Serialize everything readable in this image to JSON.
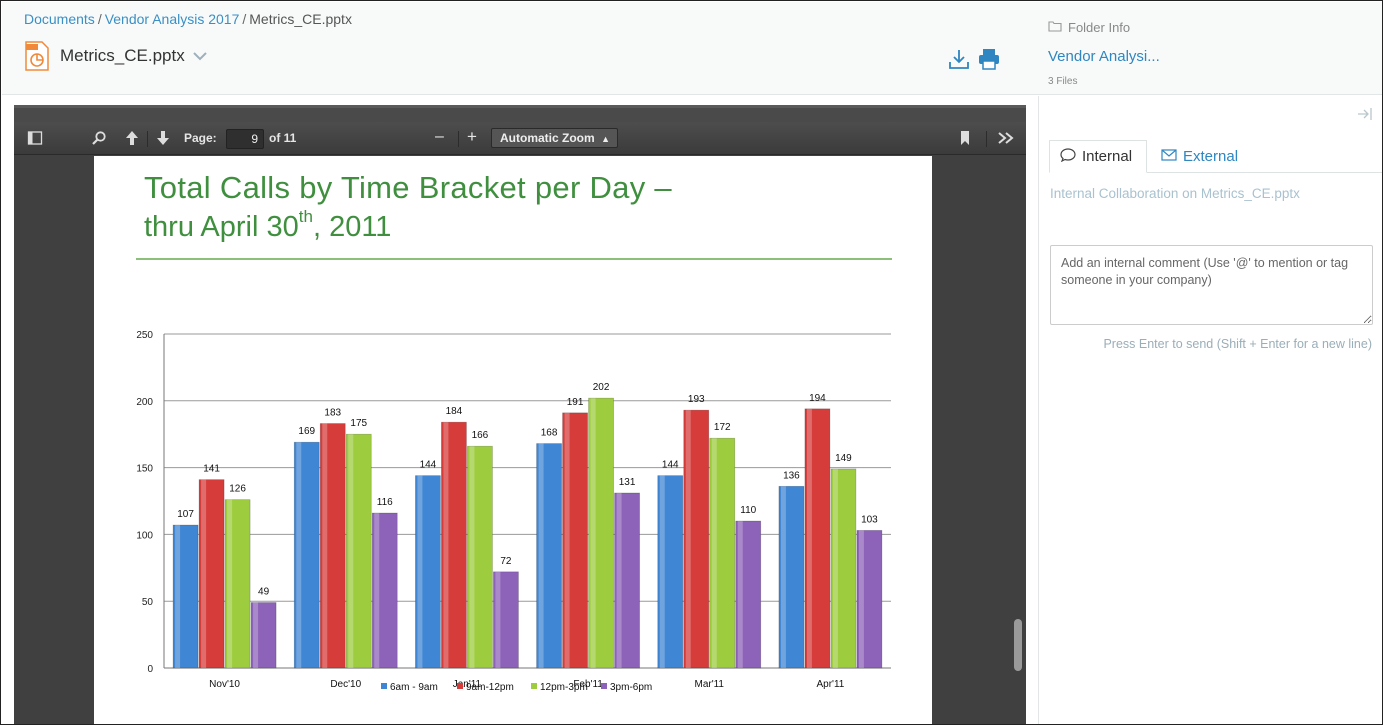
{
  "breadcrumb": {
    "items": [
      "Documents",
      "Vendor Analysis 2017"
    ],
    "current": "Metrics_CE.pptx",
    "sep": "/"
  },
  "file": {
    "name": "Metrics_CE.pptx",
    "icon": "pptx-file-icon"
  },
  "toolbar": {
    "download_icon": "download-icon",
    "print_icon": "print-icon"
  },
  "folder": {
    "label": "Folder Info",
    "name": "Vendor Analysi...",
    "count": "3 Files"
  },
  "collab": {
    "tabs": {
      "internal": "Internal",
      "external": "External"
    },
    "title": "Internal Collaboration on Metrics_CE.pptx",
    "placeholder": "Add an internal comment (Use '@' to mention or tag someone in your company)",
    "hint": "Press Enter to send (Shift + Enter for a new line)"
  },
  "pdf": {
    "page_label": "Page:",
    "page_value": "9",
    "page_total": "of 11",
    "zoom": "Automatic Zoom",
    "zoom_minus": "–",
    "zoom_plus": "+"
  },
  "slide": {
    "title_line1": "Total Calls by Time Bracket per Day –",
    "title_line2_pre": "thru April 30",
    "title_sup": "th",
    "title_line2_post": ", 2011"
  },
  "chart_data": {
    "type": "bar",
    "categories": [
      "Nov'10",
      "Dec'10",
      "Jan'11",
      "Feb'11",
      "Mar'11",
      "Apr'11"
    ],
    "series": [
      {
        "name": "6am - 9am",
        "color": "#3f86d4",
        "values": [
          107,
          169,
          144,
          168,
          144,
          136
        ]
      },
      {
        "name": "9am-12pm",
        "color": "#d63c3a",
        "values": [
          141,
          183,
          184,
          191,
          193,
          194
        ]
      },
      {
        "name": "12pm-3pm",
        "color": "#9dcd3e",
        "values": [
          126,
          175,
          166,
          202,
          172,
          149
        ]
      },
      {
        "name": "3pm-6pm",
        "color": "#8d62b9",
        "values": [
          49,
          116,
          72,
          131,
          110,
          103
        ]
      }
    ],
    "yticks": [
      "0",
      "50",
      "100",
      "150",
      "200",
      "250"
    ],
    "ylim": [
      0,
      250
    ],
    "grid": true,
    "legend": "bottom"
  }
}
